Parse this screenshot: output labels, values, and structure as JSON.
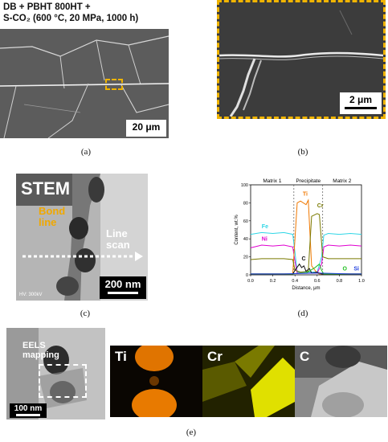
{
  "panel_a": {
    "title_line1": "DB + PBHT 800HT +",
    "title_line2": "S-CO₂ (600 °C, 20 MPa, 1000 h)",
    "scale": "20 μm",
    "caption": "(a)"
  },
  "panel_b": {
    "scale": "2 μm",
    "caption": "(b)"
  },
  "panel_c": {
    "stem": "STEM",
    "bond1": "Bond",
    "bond2": "line",
    "line1": "Line",
    "line2": "scan",
    "hv": "HV: 300kV",
    "scale": "200 nm",
    "caption": "(c)"
  },
  "panel_d": {
    "caption": "(d)"
  },
  "panel_e": {
    "eels1": "EELS",
    "eels2": "mapping",
    "scale": "100 nm",
    "maps": [
      "Ti",
      "Cr",
      "C"
    ],
    "caption": "(e)"
  },
  "chart_data": {
    "type": "line",
    "xlabel": "Distance, μm",
    "ylabel": "Content, wt.%",
    "xlim": [
      0,
      1.0
    ],
    "ylim": [
      0,
      100
    ],
    "xticks": [
      "0.0",
      "0.2",
      "0.4",
      "0.6",
      "0.8",
      "1.0"
    ],
    "yticks": [
      "0",
      "20",
      "40",
      "60",
      "80",
      "100"
    ],
    "regions": [
      "Matrix 1",
      "Precipitate",
      "Matrix 2"
    ],
    "boundaries": [
      0.39,
      0.65
    ],
    "series": [
      {
        "name": "Fe",
        "color": "#2fd6e6",
        "label_at": [
          0.1,
          52
        ],
        "x": [
          0,
          0.1,
          0.2,
          0.3,
          0.38,
          0.4,
          0.42,
          0.6,
          0.64,
          0.66,
          0.7,
          0.8,
          0.9,
          1.0
        ],
        "y": [
          45,
          47,
          46,
          47,
          45,
          25,
          3,
          3,
          20,
          44,
          46,
          45,
          46,
          45
        ]
      },
      {
        "name": "Ni",
        "color": "#e000d0",
        "label_at": [
          0.1,
          38
        ],
        "x": [
          0,
          0.1,
          0.2,
          0.3,
          0.38,
          0.4,
          0.42,
          0.6,
          0.64,
          0.66,
          0.7,
          0.8,
          0.9,
          1.0
        ],
        "y": [
          30,
          33,
          32,
          33,
          31,
          15,
          2,
          2,
          12,
          31,
          33,
          32,
          33,
          32
        ]
      },
      {
        "name": "Ti",
        "color": "#f07800",
        "label_at": [
          0.47,
          88
        ],
        "x": [
          0,
          0.38,
          0.4,
          0.42,
          0.45,
          0.5,
          0.52,
          0.55,
          0.6,
          0.62,
          0.64,
          1.0
        ],
        "y": [
          1,
          1,
          40,
          80,
          82,
          78,
          83,
          10,
          2,
          1,
          1,
          1
        ]
      },
      {
        "name": "Cr",
        "color": "#7a7a00",
        "label_at": [
          0.6,
          75
        ],
        "x": [
          0,
          0.1,
          0.2,
          0.3,
          0.38,
          0.4,
          0.45,
          0.52,
          0.55,
          0.6,
          0.62,
          0.65,
          0.7,
          0.8,
          0.9,
          1.0
        ],
        "y": [
          17,
          18,
          18,
          18,
          17,
          5,
          3,
          4,
          65,
          68,
          67,
          20,
          18,
          18,
          18,
          18
        ]
      },
      {
        "name": "C",
        "color": "#111111",
        "label_at": [
          0.46,
          16
        ],
        "x": [
          0,
          0.38,
          0.4,
          0.44,
          0.46,
          0.48,
          0.5,
          0.53,
          0.55,
          0.6,
          0.64,
          1.0
        ],
        "y": [
          1,
          1,
          5,
          12,
          8,
          10,
          4,
          7,
          2,
          3,
          1,
          1
        ]
      },
      {
        "name": "O",
        "color": "#20c020",
        "label_at": [
          0.83,
          5
        ],
        "x": [
          0,
          0.38,
          0.45,
          0.5,
          0.58,
          0.62,
          0.64,
          0.66,
          0.7,
          1.0
        ],
        "y": [
          1,
          1,
          2,
          2,
          8,
          12,
          5,
          1,
          1,
          1
        ]
      },
      {
        "name": "Si",
        "color": "#2040e0",
        "label_at": [
          0.93,
          5
        ],
        "x": [
          0,
          0.3,
          0.6,
          0.9,
          1.0
        ],
        "y": [
          1,
          1,
          2,
          1,
          1
        ]
      }
    ]
  }
}
